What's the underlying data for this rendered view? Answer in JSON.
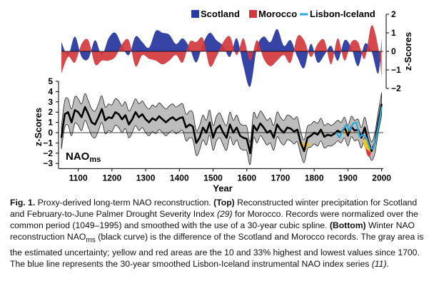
{
  "chart_data": [
    {
      "type": "area",
      "panel": "top",
      "ylabel": "z-Scores",
      "ylim": [
        -2,
        2
      ],
      "yticks": [
        2,
        1,
        0,
        -1,
        -2
      ],
      "legend": [
        "Scotland",
        "Morocco",
        "Lisbon-Iceland"
      ],
      "legend_placement": "top-right",
      "colors": {
        "Scotland": "#2a3aa0",
        "Morocco": "#d2383c",
        "Lisbon-Iceland": "#29a9df"
      },
      "x": [
        1050,
        1070,
        1090,
        1110,
        1130,
        1150,
        1170,
        1190,
        1210,
        1230,
        1250,
        1270,
        1290,
        1310,
        1330,
        1350,
        1370,
        1390,
        1410,
        1430,
        1450,
        1470,
        1490,
        1510,
        1530,
        1550,
        1570,
        1590,
        1610,
        1630,
        1650,
        1670,
        1690,
        1710,
        1730,
        1750,
        1770,
        1790,
        1810,
        1830,
        1850,
        1870,
        1890,
        1910,
        1930,
        1950,
        1970,
        1990,
        2000
      ],
      "series": [
        {
          "name": "Scotland",
          "values": [
            0.5,
            -0.2,
            0.8,
            -0.3,
            -0.4,
            0.6,
            -0.2,
            0.7,
            1.0,
            0.3,
            -0.2,
            0.8,
            0.5,
            0.2,
            1.1,
            1.0,
            0.9,
            0.4,
            0.7,
            0.2,
            -0.6,
            0.4,
            1.0,
            0.6,
            0.3,
            -0.3,
            0.7,
            -0.8,
            -1.9,
            0.2,
            0.8,
            0.5,
            1.2,
            0.3,
            0.6,
            -0.3,
            -0.9,
            0.4,
            -0.6,
            -0.2,
            0.3,
            -0.5,
            0.6,
            0.2,
            -0.8,
            0.4,
            0.0,
            -1.2,
            0.7
          ]
        },
        {
          "name": "Morocco",
          "values": [
            -1.2,
            -0.3,
            -0.6,
            0.4,
            0.6,
            -0.7,
            -0.5,
            -0.5,
            -0.3,
            0.4,
            0.6,
            -0.8,
            -0.2,
            -0.4,
            -0.5,
            -0.7,
            -0.5,
            -0.2,
            -0.6,
            0.5,
            0.5,
            0.7,
            -0.8,
            -0.3,
            0.5,
            0.8,
            -0.2,
            0.7,
            -0.5,
            0.6,
            -0.4,
            -0.8,
            -0.5,
            -0.2,
            -0.6,
            0.8,
            0.6,
            -0.3,
            0.4,
            0.6,
            -0.7,
            0.7,
            -0.5,
            0.5,
            0.5,
            -0.4,
            1.4,
            0.2,
            -1.4
          ]
        }
      ]
    },
    {
      "type": "line",
      "panel": "bottom",
      "label": "NAOms",
      "xlabel": "Year",
      "ylabel": "z-Scores",
      "xlim": [
        1050,
        2005
      ],
      "ylim": [
        -3.5,
        5
      ],
      "xticks": [
        1100,
        1200,
        1300,
        1400,
        1500,
        1600,
        1700,
        1800,
        1900,
        2000
      ],
      "yticks": [
        5,
        4,
        3,
        2,
        1,
        0,
        -1,
        -2,
        -3
      ],
      "x": [
        1050,
        1060,
        1070,
        1080,
        1090,
        1100,
        1110,
        1120,
        1130,
        1140,
        1150,
        1160,
        1170,
        1180,
        1190,
        1200,
        1210,
        1220,
        1230,
        1240,
        1250,
        1260,
        1270,
        1280,
        1290,
        1300,
        1310,
        1320,
        1330,
        1340,
        1350,
        1360,
        1370,
        1380,
        1390,
        1400,
        1410,
        1420,
        1430,
        1440,
        1450,
        1460,
        1470,
        1480,
        1490,
        1500,
        1510,
        1520,
        1530,
        1540,
        1550,
        1560,
        1570,
        1580,
        1590,
        1600,
        1610,
        1620,
        1630,
        1640,
        1650,
        1660,
        1670,
        1680,
        1690,
        1700,
        1710,
        1720,
        1730,
        1740,
        1750,
        1760,
        1770,
        1780,
        1790,
        1800,
        1810,
        1820,
        1830,
        1840,
        1850,
        1860,
        1870,
        1880,
        1890,
        1900,
        1910,
        1920,
        1930,
        1940,
        1950,
        1960,
        1970,
        1980,
        1990,
        2000
      ],
      "series": [
        {
          "name": "NAOms",
          "values": [
            -0.5,
            1.8,
            2.0,
            1.0,
            2.2,
            2.0,
            1.5,
            2.5,
            1.8,
            1.0,
            0.8,
            1.5,
            2.3,
            1.2,
            1.5,
            1.4,
            2.0,
            1.8,
            1.3,
            1.7,
            0.8,
            1.3,
            2.0,
            1.5,
            1.8,
            1.3,
            1.0,
            1.4,
            1.2,
            1.6,
            1.3,
            1.0,
            1.3,
            1.5,
            1.2,
            1.4,
            1.5,
            0.5,
            0.8,
            0.6,
            -1.0,
            -0.5,
            0.5,
            0.0,
            1.0,
            -0.5,
            0.4,
            0.7,
            0.0,
            -0.5,
            0.8,
            0.0,
            0.5,
            -0.3,
            -0.5,
            -0.6,
            -2.0,
            0.7,
            0.2,
            0.9,
            0.5,
            0.0,
            0.2,
            -0.5,
            0.8,
            0.3,
            0.0,
            0.5,
            0.4,
            0.1,
            0.3,
            -1.0,
            -1.8,
            -0.5,
            -0.3,
            0.0,
            -0.2,
            0.3,
            -0.4,
            -0.2,
            -0.3,
            -0.1,
            0.2,
            0.0,
            0.5,
            -0.3,
            0.6,
            0.2,
            0.3,
            -0.5,
            0.5,
            -0.8,
            -1.8,
            -1.0,
            1.0,
            2.8
          ]
        },
        {
          "name": "Lisbon-Iceland",
          "x": [
            1865,
            1875,
            1885,
            1895,
            1905,
            1915,
            1925,
            1935,
            1945,
            1955,
            1965,
            1975,
            1985,
            1995,
            2000
          ],
          "values": [
            0.0,
            -0.5,
            0.3,
            0.8,
            0.2,
            0.9,
            1.0,
            -0.4,
            -0.2,
            -0.5,
            -1.5,
            -1.6,
            -0.3,
            1.5,
            2.5
          ]
        }
      ],
      "uncertainty_band": {
        "lower": [
          -1.6,
          0.5,
          0.7,
          -0.3,
          0.9,
          0.7,
          0.2,
          1.2,
          0.5,
          -0.3,
          -0.5,
          0.2,
          1.0,
          -0.1,
          0.2,
          0.1,
          0.7,
          0.5,
          0.0,
          0.4,
          -0.5,
          0.0,
          0.7,
          0.2,
          0.5,
          0.0,
          -0.3,
          0.1,
          -0.1,
          0.3,
          0.0,
          -0.3,
          0.0,
          0.2,
          -0.1,
          0.1,
          0.2,
          -0.8,
          -0.5,
          -0.7,
          -2.2,
          -1.7,
          -0.7,
          -1.2,
          -0.2,
          -1.7,
          -0.8,
          -0.5,
          -1.2,
          -1.7,
          -0.4,
          -1.2,
          -0.7,
          -1.5,
          -1.7,
          -1.8,
          -3.1,
          -0.5,
          -1.0,
          -0.3,
          -0.7,
          -1.2,
          -1.0,
          -1.7,
          -0.4,
          -0.9,
          -1.2,
          -0.7,
          -0.8,
          -1.1,
          -0.9,
          -2.1,
          -2.9,
          -1.6,
          -1.4,
          -1.1,
          -1.3,
          -0.8,
          -1.5,
          -1.3,
          -1.3,
          -1.1,
          -0.8,
          -1.0,
          -0.5,
          -1.3,
          -0.4,
          -0.8,
          -0.7,
          -1.5,
          -0.5,
          -1.8,
          -2.7,
          -2.0,
          0.0,
          1.7
        ],
        "upper": [
          0.6,
          3.1,
          3.3,
          2.3,
          3.5,
          3.3,
          2.8,
          3.8,
          3.1,
          2.3,
          2.1,
          2.8,
          3.6,
          2.5,
          2.8,
          2.7,
          3.3,
          3.1,
          2.6,
          3.0,
          2.1,
          2.6,
          3.3,
          2.8,
          3.1,
          2.6,
          2.3,
          2.7,
          2.5,
          2.9,
          2.6,
          2.3,
          2.6,
          2.8,
          2.5,
          2.7,
          2.8,
          1.8,
          2.1,
          1.9,
          0.2,
          0.7,
          1.7,
          1.2,
          2.2,
          0.7,
          1.6,
          1.9,
          1.2,
          0.7,
          2.0,
          1.2,
          1.7,
          0.9,
          0.7,
          0.6,
          -0.9,
          1.9,
          1.4,
          2.1,
          1.7,
          1.2,
          1.4,
          0.7,
          2.0,
          1.5,
          1.2,
          1.7,
          1.6,
          1.3,
          1.5,
          0.1,
          -0.7,
          0.6,
          0.8,
          1.1,
          0.9,
          1.4,
          0.7,
          0.9,
          0.7,
          0.9,
          1.2,
          1.0,
          1.5,
          0.7,
          1.6,
          1.2,
          1.3,
          0.5,
          1.5,
          0.2,
          -0.9,
          0.0,
          2.0,
          3.9
        ]
      }
    }
  ],
  "caption": {
    "fig_label": "Fig. 1.",
    "p1": " Proxy-derived long-term NAO reconstruction. ",
    "top_label": "(Top)",
    "p2": " Reconstructed winter precipitation for Scotland and February-to-June Palmer Drought Severity Index ",
    "ref1": "(29)",
    "p3": " for Morocco. Records were normalized over the common period (1049–1995) and smoothed with the use of a 30-year cubic spline. ",
    "bottom_label": "(Bottom)",
    "p4": " Winter NAO reconstruction NAO",
    "sub1": "ms",
    "p5": " (black curve) is the difference of the Scotland and Morocco records. The gray area is the estimated uncertainty; yellow and red areas are the 10 and 33% highest and lowest values since 1700. The blue line represents the 30-year smoothed Lisbon-Iceland instrumental NAO index series ",
    "ref2": "(11)",
    "p6": "."
  }
}
